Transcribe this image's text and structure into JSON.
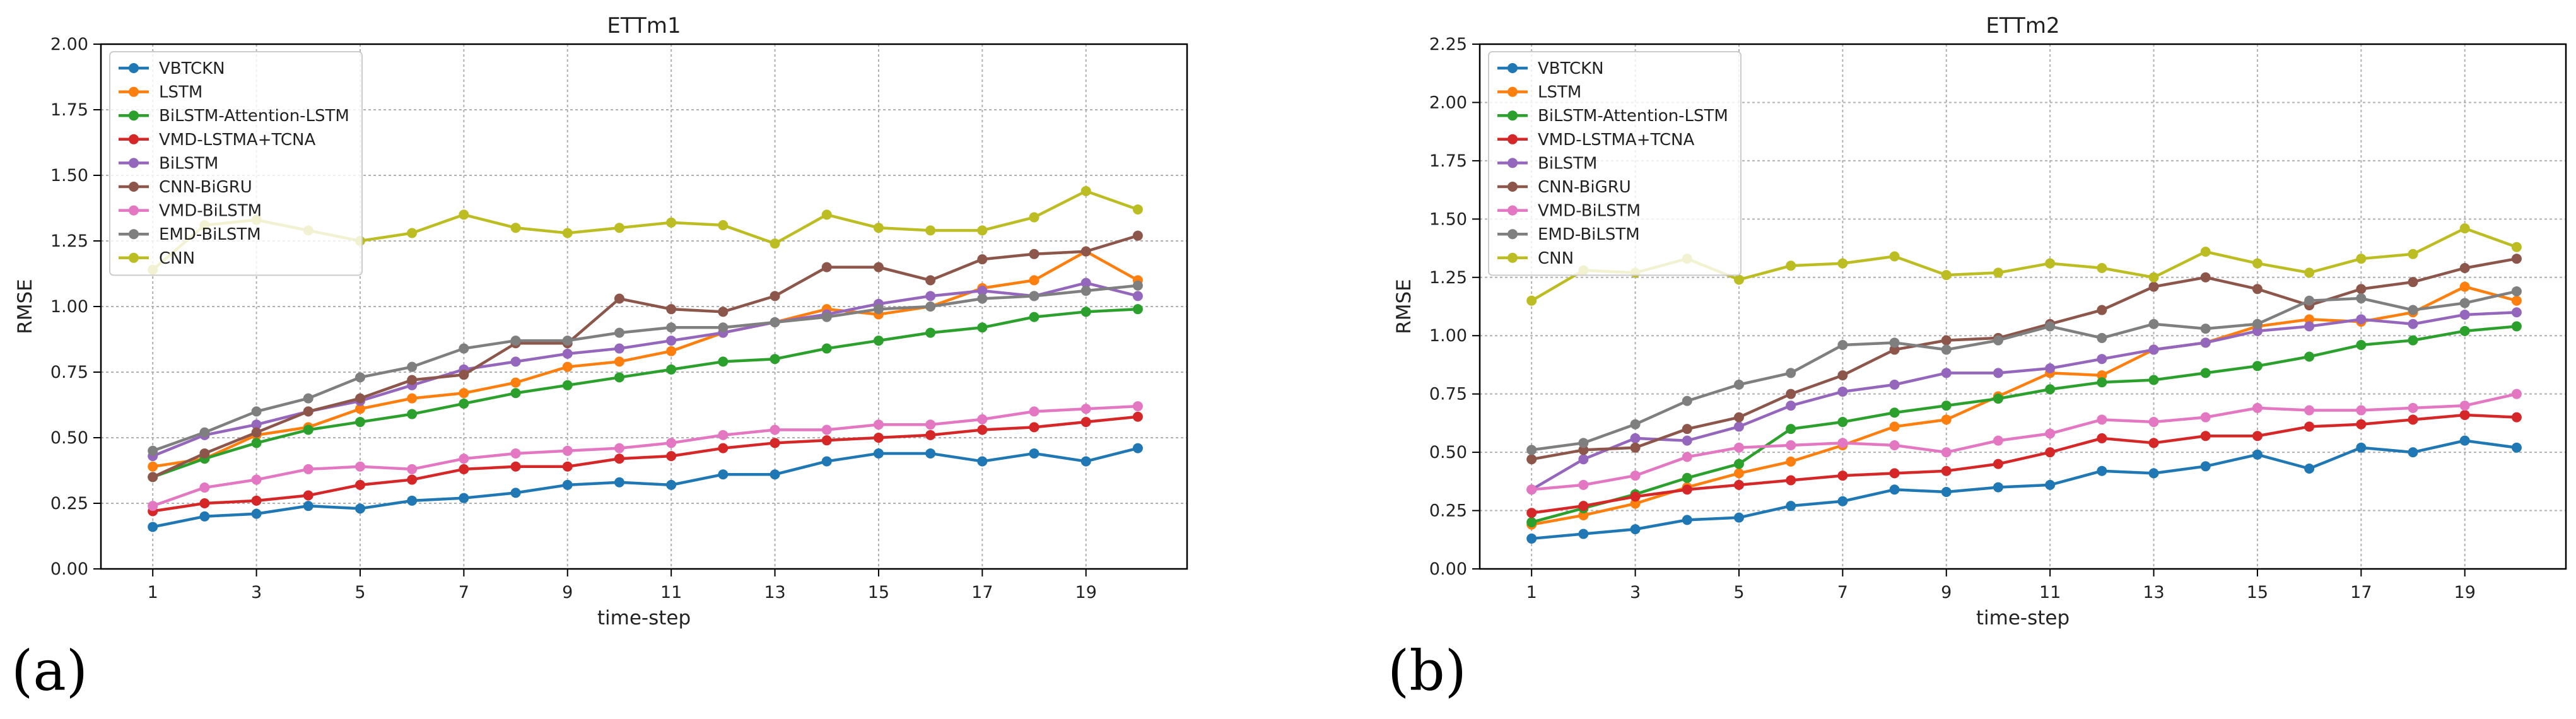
{
  "panel_labels": [
    "(a)",
    "(b)"
  ],
  "colors": {
    "VBTCKN": "#1f77b4",
    "LSTM": "#ff7f0e",
    "BiLSTM-Attention-LSTM": "#2ca02c",
    "VMD-LSTMA+TCNA": "#d62728",
    "BiLSTM": "#9467bd",
    "CNN-BiGRU": "#8c564b",
    "VMD-BiLSTM": "#e377c2",
    "EMD-BiLSTM": "#7f7f7f",
    "CNN": "#bcbd22"
  },
  "chart_data": [
    {
      "type": "line",
      "title": "ETTm1",
      "xlabel": "time-step",
      "ylabel": "RMSE",
      "x": [
        1,
        2,
        3,
        4,
        5,
        6,
        7,
        8,
        9,
        10,
        11,
        12,
        13,
        14,
        15,
        16,
        17,
        18,
        19,
        20
      ],
      "xticks": [
        1,
        3,
        5,
        7,
        9,
        11,
        13,
        15,
        17,
        19
      ],
      "xlim": [
        0.0,
        20.95
      ],
      "ylim": [
        0.0,
        2.0
      ],
      "yticks": [
        0.0,
        0.25,
        0.5,
        0.75,
        1.0,
        1.25,
        1.5,
        1.75,
        2.0
      ],
      "grid": true,
      "legend": "top-left",
      "series": [
        {
          "name": "VBTCKN",
          "values": [
            0.16,
            0.2,
            0.21,
            0.24,
            0.23,
            0.26,
            0.27,
            0.29,
            0.32,
            0.33,
            0.32,
            0.36,
            0.36,
            0.41,
            0.44,
            0.44,
            0.41,
            0.44,
            0.41,
            0.46
          ]
        },
        {
          "name": "LSTM",
          "values": [
            0.39,
            0.42,
            0.51,
            0.54,
            0.61,
            0.65,
            0.67,
            0.71,
            0.77,
            0.79,
            0.83,
            0.9,
            0.94,
            0.99,
            0.97,
            1.0,
            1.07,
            1.1,
            1.21,
            1.1
          ]
        },
        {
          "name": "BiLSTM-Attention-LSTM",
          "values": [
            0.35,
            0.42,
            0.48,
            0.53,
            0.56,
            0.59,
            0.63,
            0.67,
            0.7,
            0.73,
            0.76,
            0.79,
            0.8,
            0.84,
            0.87,
            0.9,
            0.92,
            0.96,
            0.98,
            0.99
          ]
        },
        {
          "name": "VMD-LSTMA+TCNA",
          "values": [
            0.22,
            0.25,
            0.26,
            0.28,
            0.32,
            0.34,
            0.38,
            0.39,
            0.39,
            0.42,
            0.43,
            0.46,
            0.48,
            0.49,
            0.5,
            0.51,
            0.53,
            0.54,
            0.56,
            0.58
          ]
        },
        {
          "name": "BiLSTM",
          "values": [
            0.43,
            0.51,
            0.55,
            0.6,
            0.64,
            0.7,
            0.76,
            0.79,
            0.82,
            0.84,
            0.87,
            0.9,
            0.94,
            0.97,
            1.01,
            1.04,
            1.06,
            1.04,
            1.09,
            1.04
          ]
        },
        {
          "name": "CNN-BiGRU",
          "values": [
            0.35,
            0.44,
            0.52,
            0.6,
            0.65,
            0.72,
            0.74,
            0.86,
            0.86,
            1.03,
            0.99,
            0.98,
            1.04,
            1.15,
            1.15,
            1.1,
            1.18,
            1.2,
            1.21,
            1.27
          ]
        },
        {
          "name": "VMD-BiLSTM",
          "values": [
            0.24,
            0.31,
            0.34,
            0.38,
            0.39,
            0.38,
            0.42,
            0.44,
            0.45,
            0.46,
            0.48,
            0.51,
            0.53,
            0.53,
            0.55,
            0.55,
            0.57,
            0.6,
            0.61,
            0.62
          ]
        },
        {
          "name": "EMD-BiLSTM",
          "values": [
            0.45,
            0.52,
            0.6,
            0.65,
            0.73,
            0.77,
            0.84,
            0.87,
            0.87,
            0.9,
            0.92,
            0.92,
            0.94,
            0.96,
            0.99,
            1.0,
            1.03,
            1.04,
            1.06,
            1.08
          ]
        },
        {
          "name": "CNN",
          "values": [
            1.14,
            1.31,
            1.33,
            1.29,
            1.25,
            1.28,
            1.35,
            1.3,
            1.28,
            1.3,
            1.32,
            1.31,
            1.24,
            1.35,
            1.3,
            1.29,
            1.29,
            1.34,
            1.44,
            1.37
          ]
        }
      ]
    },
    {
      "type": "line",
      "title": "ETTm2",
      "xlabel": "time-step",
      "ylabel": "RMSE",
      "x": [
        1,
        2,
        3,
        4,
        5,
        6,
        7,
        8,
        9,
        10,
        11,
        12,
        13,
        14,
        15,
        16,
        17,
        18,
        19,
        20
      ],
      "xticks": [
        1,
        3,
        5,
        7,
        9,
        11,
        13,
        15,
        17,
        19
      ],
      "xlim": [
        0.0,
        20.95
      ],
      "ylim": [
        0.0,
        2.25
      ],
      "yticks": [
        0.0,
        0.25,
        0.5,
        0.75,
        1.0,
        1.25,
        1.5,
        1.75,
        2.0,
        2.25
      ],
      "grid": true,
      "legend": "top-left",
      "series": [
        {
          "name": "VBTCKN",
          "values": [
            0.13,
            0.15,
            0.17,
            0.21,
            0.22,
            0.27,
            0.29,
            0.34,
            0.33,
            0.35,
            0.36,
            0.42,
            0.41,
            0.44,
            0.49,
            0.43,
            0.52,
            0.5,
            0.55,
            0.52
          ]
        },
        {
          "name": "LSTM",
          "values": [
            0.19,
            0.23,
            0.28,
            0.35,
            0.41,
            0.46,
            0.53,
            0.61,
            0.64,
            0.74,
            0.84,
            0.83,
            0.94,
            0.97,
            1.04,
            1.07,
            1.06,
            1.1,
            1.21,
            1.15
          ]
        },
        {
          "name": "BiLSTM-Attention-LSTM",
          "values": [
            0.2,
            0.26,
            0.32,
            0.39,
            0.45,
            0.6,
            0.63,
            0.67,
            0.7,
            0.73,
            0.77,
            0.8,
            0.81,
            0.84,
            0.87,
            0.91,
            0.96,
            0.98,
            1.02,
            1.04
          ]
        },
        {
          "name": "VMD-LSTMA+TCNA",
          "values": [
            0.24,
            0.27,
            0.31,
            0.34,
            0.36,
            0.38,
            0.4,
            0.41,
            0.42,
            0.45,
            0.5,
            0.56,
            0.54,
            0.57,
            0.57,
            0.61,
            0.62,
            0.64,
            0.66,
            0.65
          ]
        },
        {
          "name": "BiLSTM",
          "values": [
            0.34,
            0.47,
            0.56,
            0.55,
            0.61,
            0.7,
            0.76,
            0.79,
            0.84,
            0.84,
            0.86,
            0.9,
            0.94,
            0.97,
            1.02,
            1.04,
            1.07,
            1.05,
            1.09,
            1.1
          ]
        },
        {
          "name": "CNN-BiGRU",
          "values": [
            0.47,
            0.51,
            0.52,
            0.6,
            0.65,
            0.75,
            0.83,
            0.94,
            0.98,
            0.99,
            1.05,
            1.11,
            1.21,
            1.25,
            1.2,
            1.13,
            1.2,
            1.23,
            1.29,
            1.33
          ]
        },
        {
          "name": "VMD-BiLSTM",
          "values": [
            0.34,
            0.36,
            0.4,
            0.48,
            0.52,
            0.53,
            0.54,
            0.53,
            0.5,
            0.55,
            0.58,
            0.64,
            0.63,
            0.65,
            0.69,
            0.68,
            0.68,
            0.69,
            0.7,
            0.75
          ]
        },
        {
          "name": "EMD-BiLSTM",
          "values": [
            0.51,
            0.54,
            0.62,
            0.72,
            0.79,
            0.84,
            0.96,
            0.97,
            0.94,
            0.98,
            1.04,
            0.99,
            1.05,
            1.03,
            1.05,
            1.15,
            1.16,
            1.11,
            1.14,
            1.19
          ]
        },
        {
          "name": "CNN",
          "values": [
            1.15,
            1.28,
            1.27,
            1.33,
            1.24,
            1.3,
            1.31,
            1.34,
            1.26,
            1.27,
            1.31,
            1.29,
            1.25,
            1.36,
            1.31,
            1.27,
            1.33,
            1.35,
            1.46,
            1.38
          ]
        }
      ]
    }
  ]
}
